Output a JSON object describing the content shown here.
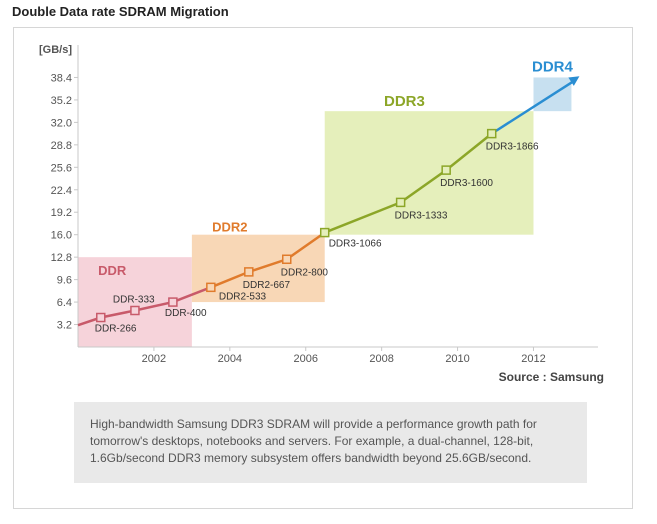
{
  "page_title": "Double Data rate SDRAM Migration",
  "note_lines": [
    "High-bandwidth Samsung DDR3 SDRAM will provide a performance growth path for",
    "tomorrow's desktops, notebooks and servers. For example, a dual-channel, 128-bit,",
    "1.6Gb/second DDR3 memory subsystem offers bandwidth beyond 25.6GB/second."
  ],
  "chart_data": {
    "type": "line",
    "ylabel": "[GB/s]",
    "source": "Source : Samsung",
    "xlim": [
      2000,
      2013.7
    ],
    "ylim": [
      0,
      41.6
    ],
    "yticks": [
      "3.2",
      "6.4",
      "9.6",
      "12.8",
      "16.0",
      "19.2",
      "22.4",
      "25.6",
      "28.8",
      "32.0",
      "35.2",
      "38.4"
    ],
    "xticks": [
      "2002",
      "2004",
      "2006",
      "2008",
      "2010",
      "2012"
    ],
    "generations": [
      {
        "name": "DDR",
        "color": "#c85a6a",
        "band_color": "#f6d3da",
        "x_range": [
          2000,
          2003
        ],
        "y_range": [
          0,
          12.8
        ],
        "points": [
          {
            "label": "DDR-266",
            "x": 2000.6,
            "y": 4.2
          },
          {
            "label": "DDR-333",
            "x": 2001.5,
            "y": 5.2
          },
          {
            "label": "DDR-400",
            "x": 2002.5,
            "y": 6.4
          }
        ]
      },
      {
        "name": "DDR2",
        "color": "#e07b2c",
        "band_color": "#f8d7b6",
        "x_range": [
          2003,
          2006.5
        ],
        "y_range": [
          6.4,
          16.0
        ],
        "points": [
          {
            "label": "DDR2-533",
            "x": 2003.5,
            "y": 8.5
          },
          {
            "label": "DDR2-667",
            "x": 2004.5,
            "y": 10.7
          },
          {
            "label": "DDR2-800",
            "x": 2005.5,
            "y": 12.5
          }
        ]
      },
      {
        "name": "DDR3",
        "color": "#8ca628",
        "band_color": "#e5efbb",
        "x_range": [
          2006.5,
          2012
        ],
        "y_range": [
          16.0,
          33.6
        ],
        "points": [
          {
            "label": "DDR3-1066",
            "x": 2006.5,
            "y": 16.3
          },
          {
            "label": "DDR3-1333",
            "x": 2008.5,
            "y": 20.6
          },
          {
            "label": "DDR3-1600",
            "x": 2009.7,
            "y": 25.2
          },
          {
            "label": "DDR3-1866",
            "x": 2010.9,
            "y": 30.4
          }
        ]
      },
      {
        "name": "DDR4",
        "color": "#2a8ed2",
        "band_color": "#c7e0f0",
        "x_range": [
          2012,
          2013
        ],
        "y_range": [
          33.6,
          38.4
        ],
        "points": []
      }
    ],
    "arrow_end": {
      "x": 2013.0,
      "y": 38.0
    }
  }
}
